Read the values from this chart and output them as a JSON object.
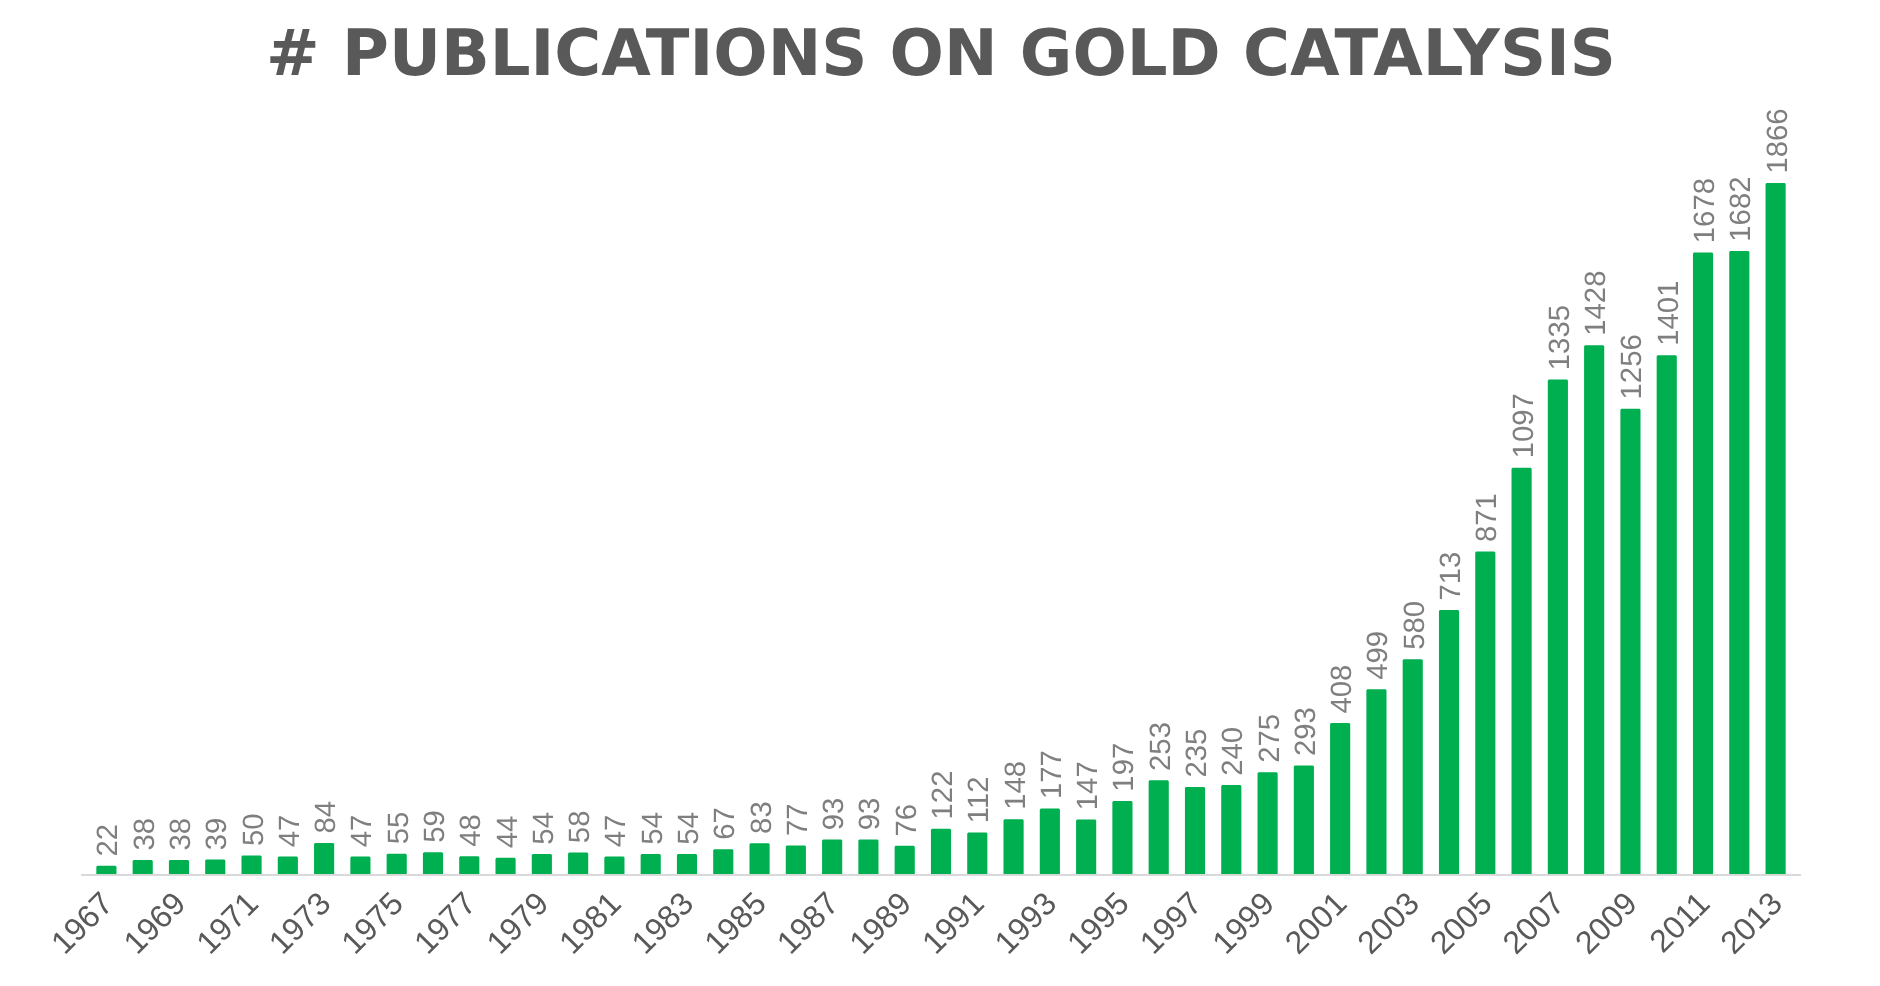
{
  "chart_data": {
    "type": "bar",
    "title": "# PUBLICATIONS ON GOLD CATALYSIS",
    "categories": [
      "1967",
      null,
      "1969",
      null,
      "1971",
      null,
      "1973",
      null,
      "1975",
      null,
      "1977",
      null,
      "1979",
      null,
      "1981",
      null,
      "1983",
      null,
      "1985",
      null,
      "1987",
      null,
      "1989",
      null,
      "1991",
      null,
      "1993",
      null,
      "1995",
      null,
      "1997",
      null,
      "1999",
      null,
      "2001",
      null,
      "2003",
      null,
      "2005",
      null,
      "2007",
      null,
      "2009",
      null,
      "2011",
      null,
      "2013"
    ],
    "values": [
      22,
      38,
      38,
      39,
      50,
      47,
      84,
      47,
      55,
      59,
      48,
      44,
      54,
      58,
      47,
      54,
      54,
      67,
      83,
      77,
      93,
      93,
      76,
      122,
      112,
      148,
      177,
      147,
      197,
      253,
      235,
      240,
      275,
      293,
      408,
      499,
      580,
      713,
      871,
      1097,
      1335,
      1428,
      1256,
      1401,
      1678,
      1682,
      1866
    ],
    "color": "#00b050",
    "data_labels": true
  }
}
